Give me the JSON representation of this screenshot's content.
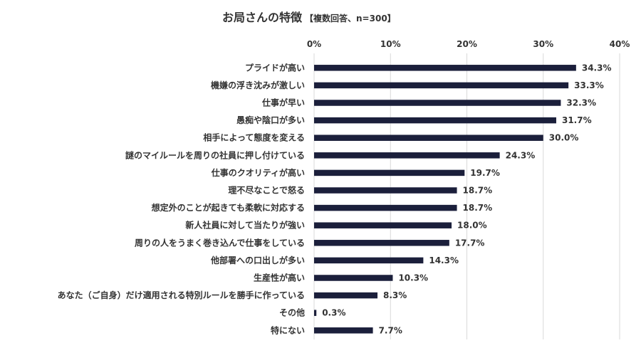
{
  "chart_data": {
    "type": "bar",
    "orientation": "horizontal",
    "title": "お局さんの特徴",
    "subtitle": "【複数回答、n=300】",
    "xlabel": "",
    "ylabel": "",
    "xlim": [
      0,
      40
    ],
    "x_ticks": [
      0,
      10,
      20,
      30,
      40
    ],
    "x_tick_labels": [
      "0%",
      "10%",
      "20%",
      "30%",
      "40%"
    ],
    "grid": true,
    "bar_color": "#1b1f3b",
    "categories": [
      "プライドが高い",
      "機嫌の浮き沈みが激しい",
      "仕事が早い",
      "愚痴や陰口が多い",
      "相手によって態度を変える",
      "謎のマイルールを周りの社員に押し付けている",
      "仕事のクオリティが高い",
      "理不尽なことで怒る",
      "想定外のことが起きても柔軟に対応する",
      "新人社員に対して当たりが強い",
      "周りの人をうまく巻き込んで仕事をしている",
      "他部署への口出しが多い",
      "生産性が高い",
      "あなた（ご自身）だけ適用される特別ルールを勝手に作っている",
      "その他",
      "特にない"
    ],
    "values": [
      34.3,
      33.3,
      32.3,
      31.7,
      30.0,
      24.3,
      19.7,
      18.7,
      18.7,
      18.0,
      17.7,
      14.3,
      10.3,
      8.3,
      0.3,
      7.7
    ],
    "value_labels": [
      "34.3%",
      "33.3%",
      "32.3%",
      "31.7%",
      "30.0%",
      "24.3%",
      "19.7%",
      "18.7%",
      "18.7%",
      "18.0%",
      "17.7%",
      "14.3%",
      "10.3%",
      "8.3%",
      "0.3%",
      "7.7%"
    ]
  }
}
